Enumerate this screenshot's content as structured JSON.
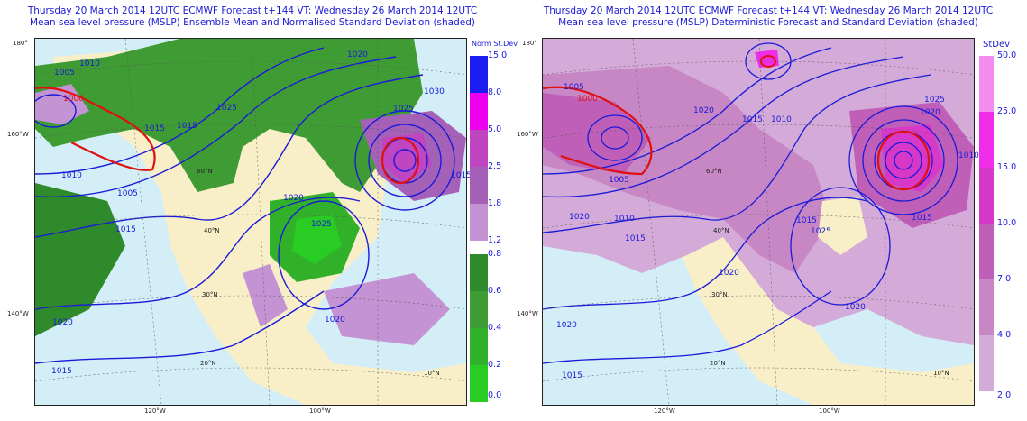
{
  "left_panel": {
    "title_line1": "Thursday 20 March 2014 12UTC ECMWF Forecast t+144  VT: Wednesday 26 March 2014 12UTC",
    "title_line2": "Mean sea level pressure (MSLP) Ensemble Mean and Normalised Standard Deviation (shaded)",
    "legend_title": "Norm St.Dev",
    "legend_upper": [
      {
        "value": "15.0",
        "color": "#1c1cf0"
      },
      {
        "value": "8.0",
        "color": "#ee00ee"
      },
      {
        "value": "5.0",
        "color": "#bf46c0"
      },
      {
        "value": "2.5",
        "color": "#a561b8"
      },
      {
        "value": "1.8",
        "color": "#c493d4"
      }
    ],
    "legend_upper_bottom": "1.2",
    "legend_lower": [
      {
        "value": "0.8",
        "color": "#2e8a2a"
      },
      {
        "value": "0.6",
        "color": "#3f9c34"
      },
      {
        "value": "0.4",
        "color": "#31b02a"
      },
      {
        "value": "0.2",
        "color": "#29cc22"
      }
    ],
    "legend_lower_bottom": "0.0",
    "legend_lower_bottom_color": "#12f010",
    "lat_labels": [
      "180°",
      "160°W",
      "140°W"
    ],
    "lon_labels": [
      "120°W",
      "100°W"
    ],
    "grid_labels": [
      "60°N",
      "40°N",
      "30°N",
      "20°N",
      "10°N"
    ],
    "isobar_labels": [
      "1005",
      "1010",
      "1015",
      "1020",
      "1025",
      "1030",
      "1000",
      "1010",
      "1005",
      "1015",
      "1020",
      "1025",
      "1015",
      "1020",
      "1015",
      "1020",
      "1025",
      "1015"
    ]
  },
  "right_panel": {
    "title_line1": "Thursday 20 March 2014 12UTC ECMWF Forecast t+144  VT: Wednesday 26 March 2014 12UTC",
    "title_line2": "Mean sea level pressure (MSLP) Deterministic Forecast and Standard Deviation (shaded)",
    "legend_title": "StDev",
    "legend": [
      {
        "value": "50.0",
        "color": "#f38cf0"
      },
      {
        "value": "25.0",
        "color": "#ef2de8"
      },
      {
        "value": "15.0",
        "color": "#d838c8"
      },
      {
        "value": "10.0",
        "color": "#bf5fb8"
      },
      {
        "value": "7.0",
        "color": "#c786c4"
      },
      {
        "value": "4.0",
        "color": "#d4aad8"
      }
    ],
    "legend_bottom": "2.0",
    "lat_labels": [
      "180°",
      "160°W",
      "140°W"
    ],
    "lon_labels": [
      "120°W",
      "100°W"
    ],
    "grid_labels": [
      "60°N",
      "40°N",
      "30°N",
      "20°N",
      "10°N"
    ],
    "isobar_labels": [
      "1005",
      "1000",
      "1005",
      "1010",
      "1015",
      "1020",
      "1020",
      "1015",
      "1010",
      "1025",
      "1020",
      "1015",
      "1010",
      "1015",
      "1020",
      "1025",
      "1020",
      "1015",
      "1020"
    ]
  },
  "colors": {
    "title": "#1a1ad8",
    "isobar": "#1a1ad8",
    "isobar_1000": "#e01010",
    "ocean": "#d4eef8",
    "land": "#f8efc8"
  }
}
